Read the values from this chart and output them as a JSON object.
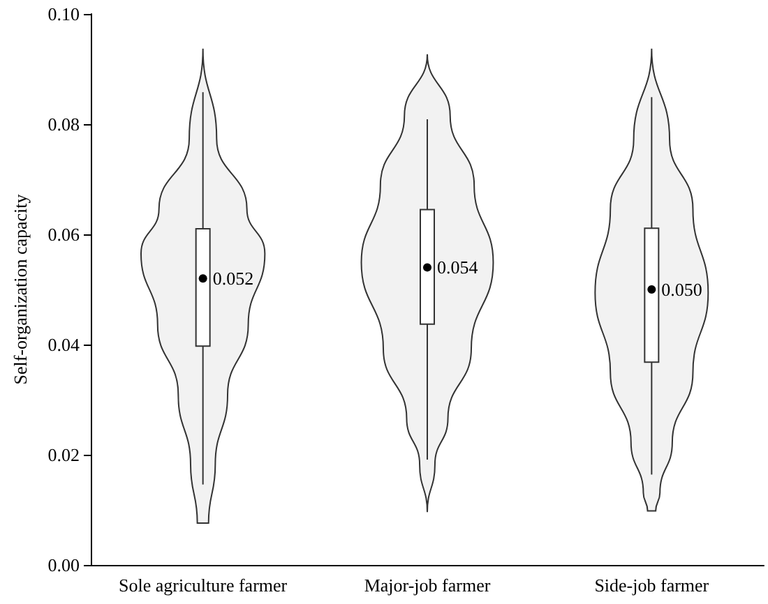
{
  "chart_data": {
    "type": "box",
    "ylabel": "Self-organization capacity",
    "categories": [
      "Sole agriculture farmer",
      "Major-job farmer",
      "Side-job farmer"
    ],
    "boxes": [
      {
        "low": 0.0146,
        "q1": 0.0397,
        "median": 0.052,
        "q3": 0.061,
        "high": 0.0858
      },
      {
        "low": 0.0191,
        "q1": 0.0437,
        "median": 0.054,
        "q3": 0.0645,
        "high": 0.0809
      },
      {
        "low": 0.0164,
        "q1": 0.0368,
        "median": 0.05,
        "q3": 0.0611,
        "high": 0.0849
      }
    ],
    "value_labels": [
      "0.052",
      "0.054",
      "0.050"
    ],
    "color": "#ffffff",
    "ylim": [
      0,
      0.1
    ],
    "yticks": [
      {
        "value": 0,
        "label": "0.00"
      },
      {
        "value": 0.02,
        "label": "0.02"
      },
      {
        "value": 0.04,
        "label": "0.04"
      },
      {
        "value": 0.06,
        "label": "0.06"
      },
      {
        "value": 0.08,
        "label": "0.08"
      },
      {
        "value": 0.1,
        "label": "0.10"
      }
    ],
    "grid": false
  }
}
